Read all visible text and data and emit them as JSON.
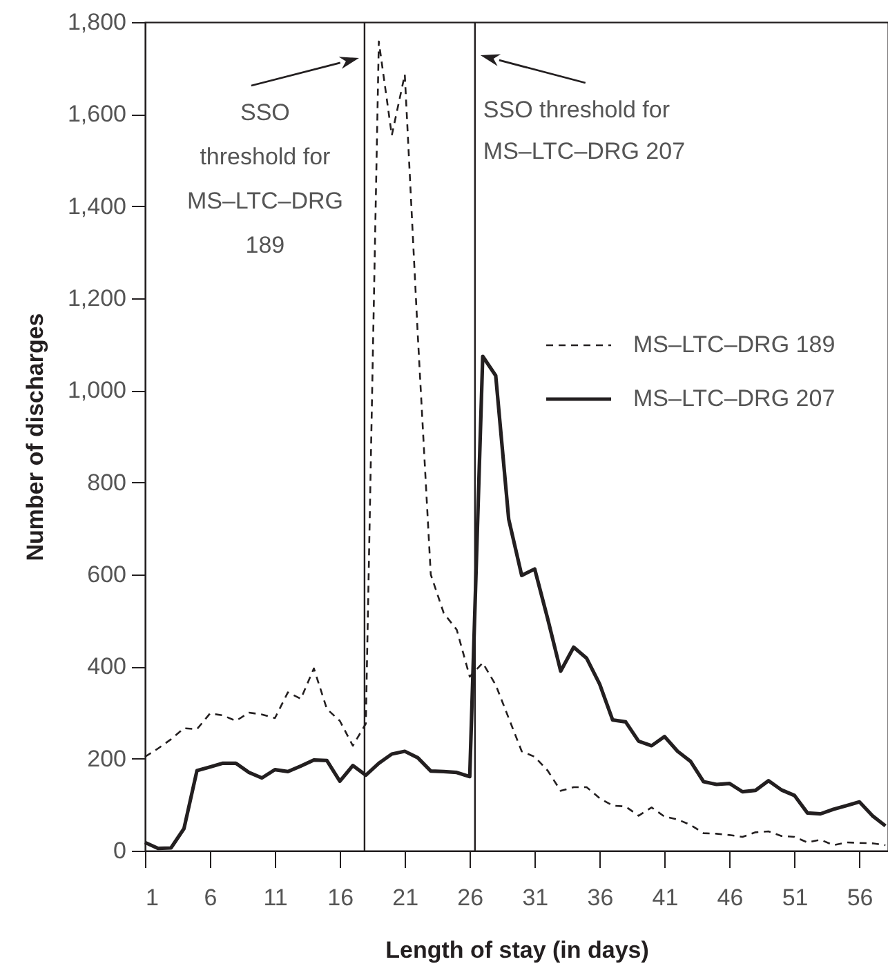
{
  "chart_data": {
    "type": "line",
    "xlabel": "Length of stay (in days)",
    "ylabel": "Number of discharges",
    "x": [
      1,
      2,
      3,
      4,
      5,
      6,
      7,
      8,
      9,
      10,
      11,
      12,
      13,
      14,
      15,
      16,
      17,
      18,
      19,
      20,
      21,
      22,
      23,
      24,
      25,
      26,
      27,
      28,
      29,
      30,
      31,
      32,
      33,
      34,
      35,
      36,
      37,
      38,
      39,
      40,
      41,
      42,
      43,
      44,
      45,
      46,
      47,
      48,
      49,
      50,
      51,
      52,
      53,
      54,
      55,
      56,
      57,
      58
    ],
    "series": [
      {
        "name": "MS–LTC–DRG 189",
        "color": "#231f20",
        "line_style": "dashed",
        "values": [
          204,
          222,
          242,
          266,
          264,
          298,
          294,
          282,
          300,
          296,
          288,
          344,
          330,
          396,
          308,
          282,
          228,
          276,
          1758,
          1554,
          1686,
          1120,
          600,
          516,
          480,
          378,
          408,
          360,
          288,
          216,
          204,
          174,
          130,
          138,
          138,
          114,
          98,
          96,
          76,
          94,
          74,
          68,
          56,
          38,
          37,
          34,
          30,
          40,
          42,
          32,
          30,
          18,
          24,
          12,
          18,
          17,
          16,
          12
        ]
      },
      {
        "name": "MS–LTC–DRG 207",
        "color": "#231f20",
        "line_style": "solid",
        "values": [
          18,
          5,
          6,
          48,
          174,
          182,
          190,
          190,
          170,
          158,
          176,
          172,
          184,
          197,
          196,
          151,
          185,
          164,
          190,
          210,
          216,
          202,
          173,
          172,
          170,
          161,
          1074,
          1032,
          720,
          598,
          612,
          504,
          390,
          442,
          418,
          362,
          284,
          280,
          238,
          228,
          248,
          216,
          194,
          150,
          144,
          146,
          128,
          131,
          152,
          132,
          120,
          82,
          80,
          90,
          98,
          106,
          76,
          54
        ]
      }
    ],
    "xlim": [
      1,
      58.2
    ],
    "xticks": [
      1,
      6,
      11,
      16,
      21,
      26,
      31,
      36,
      41,
      46,
      51,
      56
    ],
    "ylim": [
      0,
      1800
    ],
    "yticks": [
      0,
      200,
      400,
      600,
      800,
      {
        "value": 1000,
        "label": "1,000"
      },
      {
        "value": 1200,
        "label": "1,200"
      },
      {
        "value": 1400,
        "label": "1,400"
      },
      {
        "value": 1600,
        "label": "1,600"
      },
      {
        "value": 1800,
        "label": "1,800"
      }
    ],
    "ref_lines": [
      {
        "axis": "x",
        "value": 17.9,
        "label": "SSO\nthreshold for\nMS–LTC–DRG\n189"
      },
      {
        "axis": "x",
        "value": 26.4,
        "label": "SSO threshold for\nMS–LTC–DRG 207"
      }
    ],
    "grid": false,
    "legend": "right",
    "marker": "none"
  }
}
